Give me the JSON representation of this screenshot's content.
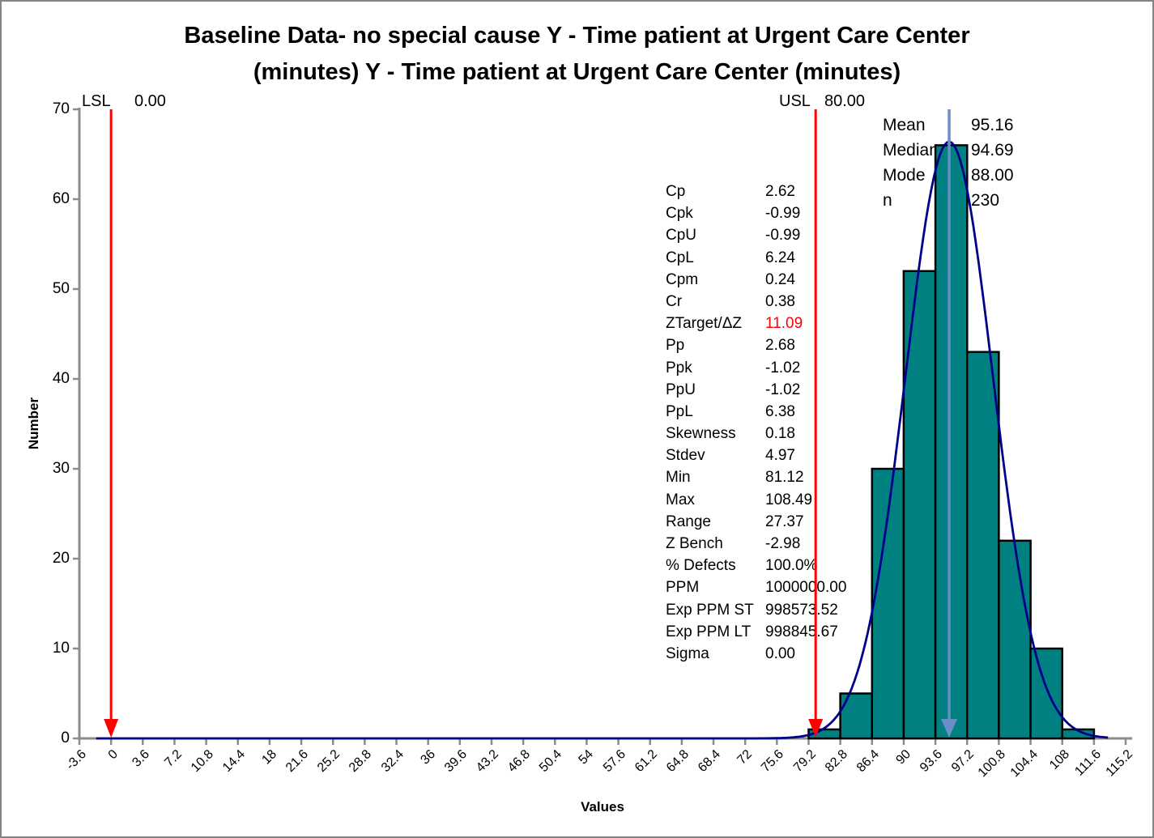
{
  "title_lines": [
    "Baseline Data- no special cause Y - Time patient at Urgent Care Center",
    "(minutes) Y - Time patient at Urgent Care Center (minutes)"
  ],
  "chart_data": {
    "type": "histogram",
    "title": "Baseline Data- no special cause Y - Time patient at Urgent Care Center (minutes) Y - Time patient at Urgent Care Center (minutes)",
    "xlabel": "Values",
    "ylabel": "Number",
    "xlim": [
      -3.6,
      115.2
    ],
    "ylim": [
      0,
      70
    ],
    "grid": false,
    "y_ticks": [
      0,
      10,
      20,
      30,
      40,
      50,
      60,
      70
    ],
    "x_tick_values": [
      -3.6,
      0,
      3.6,
      7.2,
      10.8,
      14.4,
      18,
      21.6,
      25.2,
      28.8,
      32.4,
      36,
      39.6,
      43.2,
      46.8,
      50.4,
      54,
      57.6,
      61.2,
      64.8,
      68.4,
      72,
      75.6,
      79.2,
      82.8,
      86.4,
      90,
      93.6,
      97.2,
      100.8,
      104.4,
      108,
      111.6,
      115.2
    ],
    "x_tick_labels": [
      "-3.6",
      "0",
      "3.6",
      "7.2",
      "10.8",
      "14.4",
      "18",
      "21.6",
      "25.2",
      "28.8",
      "32.4",
      "36",
      "39.6",
      "43.2",
      "46.8",
      "50.4",
      "54",
      "57.6",
      "61.2",
      "64.8",
      "68.4",
      "72",
      "75.6",
      "79.2",
      "82.8",
      "86.4",
      "90",
      "93.6",
      "97.2",
      "100.8",
      "104.4",
      "108",
      "111.6",
      "115.2"
    ],
    "bin_width": 3.6,
    "bins": [
      {
        "start": 79.2,
        "count": 1
      },
      {
        "start": 82.8,
        "count": 5
      },
      {
        "start": 86.4,
        "count": 30
      },
      {
        "start": 90,
        "count": 52
      },
      {
        "start": 93.6,
        "count": 66
      },
      {
        "start": 97.2,
        "count": 43
      },
      {
        "start": 100.8,
        "count": 22
      },
      {
        "start": 104.4,
        "count": 10
      },
      {
        "start": 108,
        "count": 1
      }
    ],
    "normal_curve": {
      "mean": 95.16,
      "stdev": 4.97,
      "n": 230,
      "peak": 66.4,
      "x_start": -1.7,
      "x_end": 113.3
    },
    "lsl": {
      "label": "LSL",
      "value": "0.00",
      "x": 0
    },
    "usl": {
      "label": "USL",
      "value": "80.00",
      "x": 80
    },
    "mean_line_x": 95.16,
    "colors": {
      "bar_fill": "#008080",
      "bar_stroke": "#000000",
      "curve": "#00008B",
      "mean_line": "#6A8FC8",
      "limit_line": "#FF0000",
      "axis": "#8C8C8C",
      "highlight_text": "#FF0000"
    }
  },
  "stats": [
    {
      "label": "Cp",
      "value": "2.62"
    },
    {
      "label": "Cpk",
      "value": "-0.99"
    },
    {
      "label": "CpU",
      "value": "-0.99"
    },
    {
      "label": "CpL",
      "value": "6.24"
    },
    {
      "label": "Cpm",
      "value": "0.24"
    },
    {
      "label": "Cr",
      "value": "0.38"
    },
    {
      "label": "ZTarget/ΔZ",
      "value": "11.09",
      "highlight": true
    },
    {
      "label": "Pp",
      "value": "2.68"
    },
    {
      "label": "Ppk",
      "value": "-1.02"
    },
    {
      "label": "PpU",
      "value": "-1.02"
    },
    {
      "label": "PpL",
      "value": "6.38"
    },
    {
      "label": "Skewness",
      "value": "0.18"
    },
    {
      "label": "Stdev",
      "value": "4.97"
    },
    {
      "label": "Min",
      "value": "81.12"
    },
    {
      "label": "Max",
      "value": "108.49"
    },
    {
      "label": "Range",
      "value": "27.37"
    },
    {
      "label": "Z Bench",
      "value": "-2.98"
    },
    {
      "label": "% Defects",
      "value": "100.0%"
    },
    {
      "label": "PPM",
      "value": "1000000.00"
    },
    {
      "label": "Exp PPM ST",
      "value": "998573.52"
    },
    {
      "label": "Exp PPM LT",
      "value": "998845.67"
    },
    {
      "label": "Sigma",
      "value": "0.00"
    }
  ],
  "summary": [
    {
      "label": "Mean",
      "value": "95.16"
    },
    {
      "label": "Median",
      "value": "94.69"
    },
    {
      "label": "Mode",
      "value": "88.00"
    },
    {
      "label": "n",
      "value": "230"
    }
  ]
}
